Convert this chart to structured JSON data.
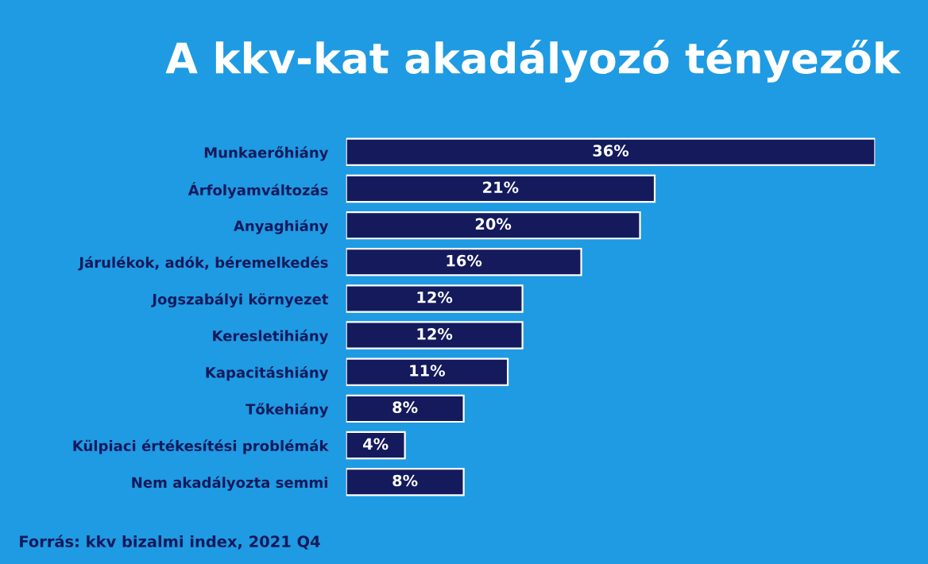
{
  "chart_data": {
    "type": "bar",
    "orientation": "horizontal",
    "title": "A kkv-kat akadályozó tényezők",
    "categories": [
      "Munkaerőhiány",
      "Árfolyamváltozás",
      "Anyaghiány",
      "Járulékok, adók, béremelkedés",
      "Jogszabályi környezet",
      "Keresletihiány",
      "Kapacitáshiány",
      "Tőkehiány",
      "Külpiaci értékesítési problémák",
      "Nem akadályozta semmi"
    ],
    "values": [
      36,
      21,
      20,
      16,
      12,
      12,
      11,
      8,
      4,
      8
    ],
    "value_labels": [
      "36%",
      "21%",
      "20%",
      "16%",
      "12%",
      "12%",
      "11%",
      "8%",
      "4%",
      "8%"
    ],
    "color": "#141a5c",
    "grid": false,
    "legend": false,
    "tick_labels": "y",
    "annotations": [
      "Forrás: kkv bizalmi index, 2021 Q4"
    ]
  }
}
